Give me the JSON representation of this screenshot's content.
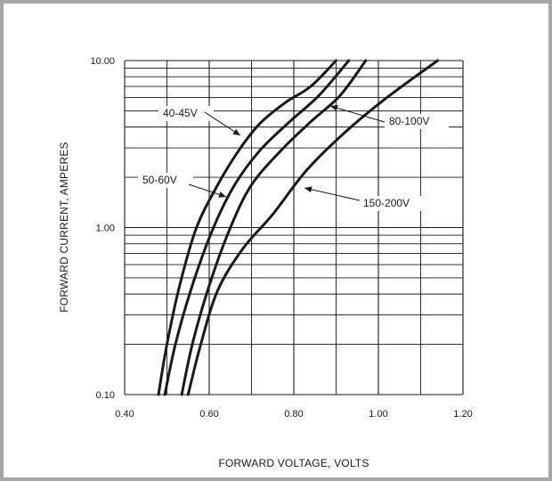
{
  "chart_data": {
    "type": "line",
    "xlabel": "FORWARD VOLTAGE, VOLTS",
    "ylabel": "FORWARD CURRENT, AMPERES",
    "xlim": [
      0.4,
      1.2
    ],
    "ylim": [
      0.1,
      10
    ],
    "yscale": "log",
    "grid": true,
    "x_ticks": [
      "0.40",
      "0.60",
      "0.80",
      "1.00",
      "1.20"
    ],
    "y_ticks": [
      "0.10",
      "1.00",
      "10.00"
    ],
    "series": [
      {
        "name": "40-45V",
        "x": [
          0.48,
          0.5,
          0.53,
          0.57,
          0.62,
          0.67,
          0.72,
          0.78,
          0.84,
          0.9
        ],
        "y": [
          0.1,
          0.2,
          0.45,
          1.0,
          1.8,
          2.9,
          4.2,
          5.6,
          7.0,
          10.0
        ]
      },
      {
        "name": "50-60V",
        "x": [
          0.495,
          0.52,
          0.56,
          0.61,
          0.66,
          0.72,
          0.79,
          0.86,
          0.93
        ],
        "y": [
          0.1,
          0.2,
          0.45,
          1.0,
          1.8,
          2.9,
          4.3,
          6.2,
          10.0
        ]
      },
      {
        "name": "80-100V",
        "x": [
          0.535,
          0.56,
          0.6,
          0.65,
          0.7,
          0.77,
          0.84,
          0.91,
          0.97
        ],
        "y": [
          0.1,
          0.2,
          0.45,
          1.0,
          1.8,
          2.9,
          4.3,
          6.2,
          10.0
        ]
      },
      {
        "name": "150-200V",
        "x": [
          0.55,
          0.58,
          0.62,
          0.68,
          0.75,
          0.83,
          0.92,
          1.02,
          1.14
        ],
        "y": [
          0.1,
          0.2,
          0.42,
          0.75,
          1.2,
          2.2,
          3.7,
          6.0,
          10.0
        ]
      }
    ],
    "annotations": [
      {
        "text": "40-45V",
        "series": 0
      },
      {
        "text": "50-60V",
        "series": 1
      },
      {
        "text": "80-100V",
        "series": 2
      },
      {
        "text": "150-200V",
        "series": 3
      }
    ]
  }
}
